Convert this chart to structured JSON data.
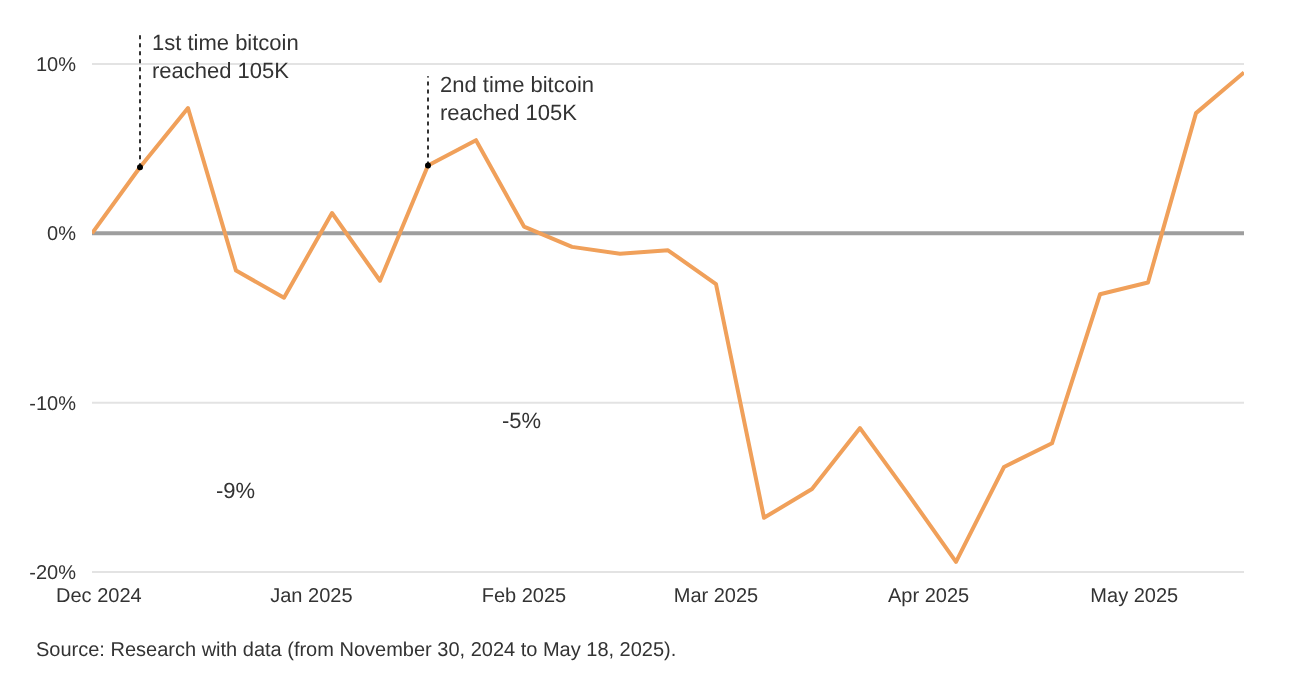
{
  "chart_data": {
    "type": "line",
    "x": [
      "2024-11-30",
      "2024-12-07",
      "2024-12-14",
      "2024-12-21",
      "2024-12-28",
      "2025-01-04",
      "2025-01-11",
      "2025-01-18",
      "2025-01-25",
      "2025-02-01",
      "2025-02-08",
      "2025-02-15",
      "2025-02-22",
      "2025-03-01",
      "2025-03-08",
      "2025-03-15",
      "2025-03-22",
      "2025-03-29",
      "2025-04-05",
      "2025-04-12",
      "2025-04-19",
      "2025-04-26",
      "2025-05-03",
      "2025-05-10",
      "2025-05-17"
    ],
    "series": [
      {
        "color": "#f0a05a",
        "values": [
          0,
          3.9,
          7.4,
          -2.2,
          -3.8,
          1.2,
          -2.8,
          4.0,
          5.5,
          0.4,
          -0.8,
          -1.2,
          -1.0,
          -3.0,
          -16.8,
          -15.1,
          -11.5,
          -15.4,
          -19.4,
          -13.8,
          -12.4,
          -3.6,
          -2.9,
          7.1,
          9.5
        ]
      }
    ],
    "xlim": [
      "2024-11-30",
      "2025-05-17"
    ],
    "xticks": [
      {
        "value": "2024-12-01",
        "label": "Dec 2024"
      },
      {
        "value": "2025-01-01",
        "label": "Jan 2025"
      },
      {
        "value": "2025-02-01",
        "label": "Feb 2025"
      },
      {
        "value": "2025-03-01",
        "label": "Mar 2025"
      },
      {
        "value": "2025-04-01",
        "label": "Apr 2025"
      },
      {
        "value": "2025-05-01",
        "label": "May 2025"
      }
    ],
    "ylim": [
      -20,
      10
    ],
    "yticks": [
      {
        "value": -20,
        "label": "-20%"
      },
      {
        "value": -10,
        "label": "-10%"
      },
      {
        "value": 0,
        "label": "0%"
      },
      {
        "value": 10,
        "label": "10%"
      }
    ],
    "legend": false,
    "marker": "none",
    "ref_lines": [
      {
        "axis": "y",
        "value": 0,
        "color": "#9e9e9e"
      },
      {
        "axis": "y",
        "value": 10,
        "color": "#e3e3e3"
      },
      {
        "axis": "y",
        "value": -10,
        "color": "#e3e3e3"
      }
    ],
    "annotations": [
      {
        "text": "1st time bitcoin reached 105K",
        "x": "2024-12-07",
        "y": 3.9
      },
      {
        "text": "2nd time bitcoin reached 105K",
        "x": "2025-01-18",
        "y": 4.0
      },
      "-9%",
      "-5%",
      "Source: Research with data (from November 30, 2024 to May 18, 2025)."
    ]
  }
}
